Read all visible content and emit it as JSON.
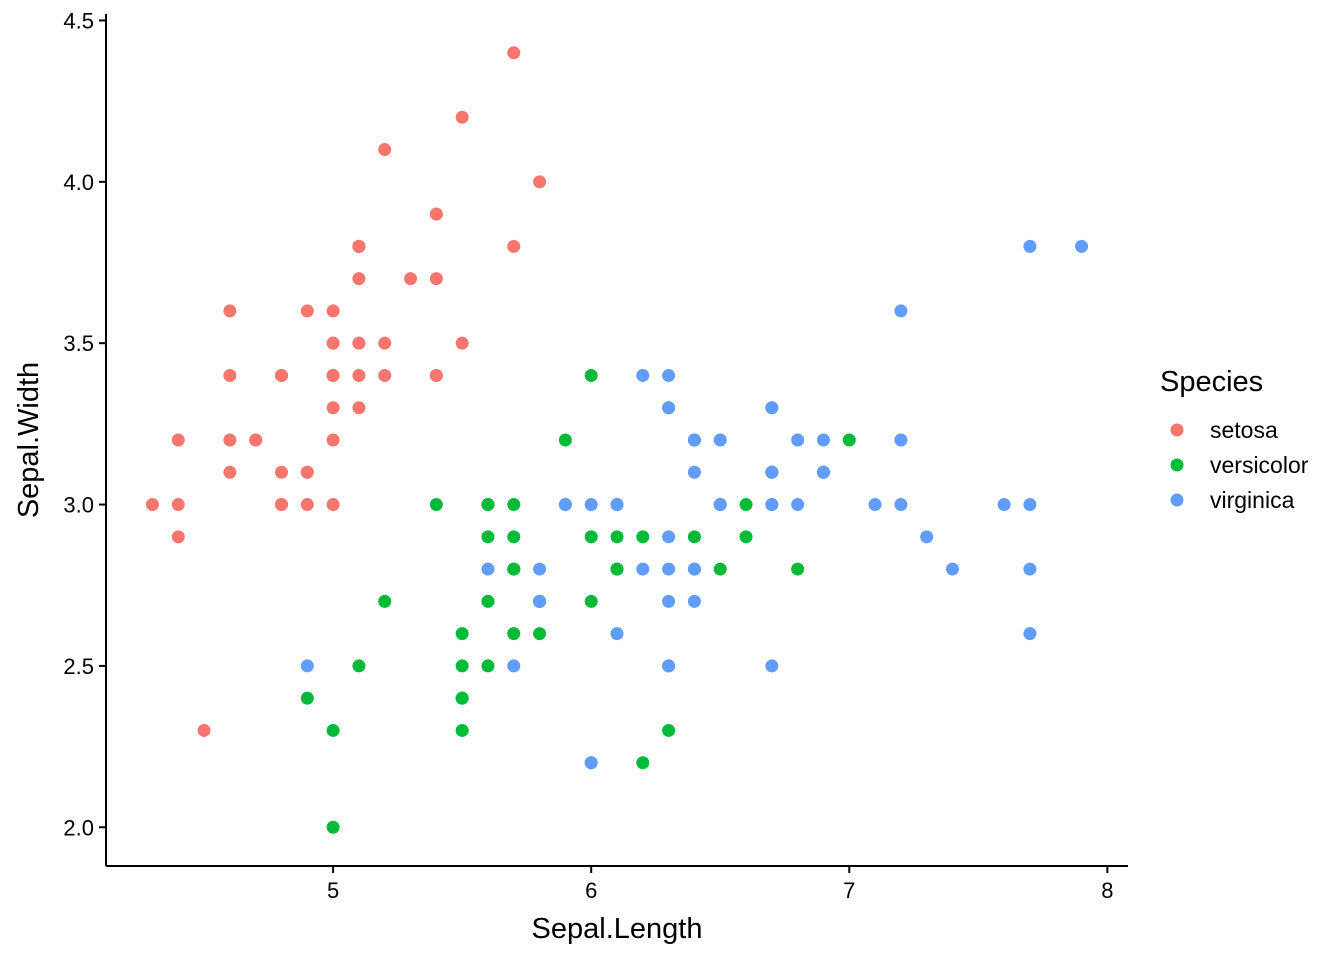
{
  "chart_data": {
    "type": "scatter",
    "xlabel": "Sepal.Length",
    "ylabel": "Sepal.Width",
    "xlim": [
      4.12,
      8.08
    ],
    "ylim": [
      1.88,
      4.52
    ],
    "x_ticks": [
      {
        "value": 5,
        "label": "5"
      },
      {
        "value": 6,
        "label": "6"
      },
      {
        "value": 7,
        "label": "7"
      },
      {
        "value": 8,
        "label": "8"
      }
    ],
    "y_ticks": [
      {
        "value": 2.0,
        "label": "2.0"
      },
      {
        "value": 2.5,
        "label": "2.5"
      },
      {
        "value": 3.0,
        "label": "3.0"
      },
      {
        "value": 3.5,
        "label": "3.5"
      },
      {
        "value": 4.0,
        "label": "4.0"
      },
      {
        "value": 4.5,
        "label": "4.5"
      }
    ],
    "grid": false,
    "legend": {
      "title": "Species",
      "position": "right"
    },
    "series": [
      {
        "name": "setosa",
        "color": "#F8766D",
        "points": [
          [
            5.1,
            3.5
          ],
          [
            4.9,
            3.0
          ],
          [
            4.7,
            3.2
          ],
          [
            4.6,
            3.1
          ],
          [
            5.0,
            3.6
          ],
          [
            5.4,
            3.9
          ],
          [
            4.6,
            3.4
          ],
          [
            5.0,
            3.4
          ],
          [
            4.4,
            2.9
          ],
          [
            4.9,
            3.1
          ],
          [
            5.4,
            3.7
          ],
          [
            4.8,
            3.4
          ],
          [
            4.8,
            3.0
          ],
          [
            4.3,
            3.0
          ],
          [
            5.8,
            4.0
          ],
          [
            5.7,
            4.4
          ],
          [
            5.4,
            3.9
          ],
          [
            5.1,
            3.5
          ],
          [
            5.7,
            3.8
          ],
          [
            5.1,
            3.8
          ],
          [
            5.4,
            3.4
          ],
          [
            5.1,
            3.7
          ],
          [
            4.6,
            3.6
          ],
          [
            5.1,
            3.3
          ],
          [
            4.8,
            3.4
          ],
          [
            5.0,
            3.0
          ],
          [
            5.0,
            3.4
          ],
          [
            5.2,
            3.5
          ],
          [
            5.2,
            3.4
          ],
          [
            4.7,
            3.2
          ],
          [
            4.8,
            3.1
          ],
          [
            5.4,
            3.4
          ],
          [
            5.2,
            4.1
          ],
          [
            5.5,
            4.2
          ],
          [
            4.9,
            3.1
          ],
          [
            5.0,
            3.2
          ],
          [
            5.5,
            3.5
          ],
          [
            4.9,
            3.6
          ],
          [
            4.4,
            3.0
          ],
          [
            5.1,
            3.4
          ],
          [
            5.0,
            3.5
          ],
          [
            4.5,
            2.3
          ],
          [
            4.4,
            3.2
          ],
          [
            5.0,
            3.5
          ],
          [
            5.1,
            3.8
          ],
          [
            4.8,
            3.0
          ],
          [
            5.1,
            3.8
          ],
          [
            4.6,
            3.2
          ],
          [
            5.3,
            3.7
          ],
          [
            5.0,
            3.3
          ]
        ]
      },
      {
        "name": "versicolor",
        "color": "#00BA38",
        "points": [
          [
            7.0,
            3.2
          ],
          [
            6.4,
            3.2
          ],
          [
            6.9,
            3.1
          ],
          [
            5.5,
            2.3
          ],
          [
            6.5,
            2.8
          ],
          [
            5.7,
            2.8
          ],
          [
            6.3,
            3.3
          ],
          [
            4.9,
            2.4
          ],
          [
            6.6,
            2.9
          ],
          [
            5.2,
            2.7
          ],
          [
            5.0,
            2.0
          ],
          [
            5.9,
            3.0
          ],
          [
            6.0,
            2.2
          ],
          [
            6.1,
            2.9
          ],
          [
            5.6,
            2.9
          ],
          [
            6.7,
            3.1
          ],
          [
            5.6,
            3.0
          ],
          [
            5.8,
            2.7
          ],
          [
            6.2,
            2.2
          ],
          [
            5.6,
            2.5
          ],
          [
            5.9,
            3.2
          ],
          [
            6.1,
            2.8
          ],
          [
            6.3,
            2.5
          ],
          [
            6.1,
            2.8
          ],
          [
            6.4,
            2.9
          ],
          [
            6.6,
            3.0
          ],
          [
            6.8,
            2.8
          ],
          [
            6.7,
            3.0
          ],
          [
            6.0,
            2.9
          ],
          [
            5.7,
            2.6
          ],
          [
            5.5,
            2.4
          ],
          [
            5.5,
            2.4
          ],
          [
            5.8,
            2.7
          ],
          [
            6.0,
            2.7
          ],
          [
            5.4,
            3.0
          ],
          [
            6.0,
            3.4
          ],
          [
            6.7,
            3.1
          ],
          [
            6.3,
            2.3
          ],
          [
            5.6,
            3.0
          ],
          [
            5.5,
            2.5
          ],
          [
            5.5,
            2.6
          ],
          [
            6.1,
            3.0
          ],
          [
            5.8,
            2.6
          ],
          [
            5.0,
            2.3
          ],
          [
            5.6,
            2.7
          ],
          [
            5.7,
            3.0
          ],
          [
            5.7,
            2.9
          ],
          [
            6.2,
            2.9
          ],
          [
            5.1,
            2.5
          ],
          [
            5.7,
            2.8
          ]
        ]
      },
      {
        "name": "virginica",
        "color": "#619CFF",
        "points": [
          [
            6.3,
            3.3
          ],
          [
            5.8,
            2.7
          ],
          [
            7.1,
            3.0
          ],
          [
            6.3,
            2.9
          ],
          [
            6.5,
            3.0
          ],
          [
            7.6,
            3.0
          ],
          [
            4.9,
            2.5
          ],
          [
            7.3,
            2.9
          ],
          [
            6.7,
            2.5
          ],
          [
            7.2,
            3.6
          ],
          [
            6.5,
            3.2
          ],
          [
            6.4,
            2.7
          ],
          [
            6.8,
            3.0
          ],
          [
            5.7,
            2.5
          ],
          [
            5.8,
            2.8
          ],
          [
            6.4,
            3.2
          ],
          [
            6.5,
            3.0
          ],
          [
            7.7,
            3.8
          ],
          [
            7.7,
            2.6
          ],
          [
            6.0,
            2.2
          ],
          [
            6.9,
            3.2
          ],
          [
            5.6,
            2.8
          ],
          [
            7.7,
            2.8
          ],
          [
            6.3,
            2.7
          ],
          [
            6.7,
            3.3
          ],
          [
            7.2,
            3.2
          ],
          [
            6.2,
            2.8
          ],
          [
            6.1,
            3.0
          ],
          [
            6.4,
            2.8
          ],
          [
            7.2,
            3.0
          ],
          [
            7.4,
            2.8
          ],
          [
            7.9,
            3.8
          ],
          [
            6.4,
            2.8
          ],
          [
            6.3,
            2.8
          ],
          [
            6.1,
            2.6
          ],
          [
            7.7,
            3.0
          ],
          [
            6.3,
            3.4
          ],
          [
            6.4,
            3.1
          ],
          [
            6.0,
            3.0
          ],
          [
            6.9,
            3.1
          ],
          [
            6.7,
            3.1
          ],
          [
            6.9,
            3.1
          ],
          [
            5.8,
            2.7
          ],
          [
            6.8,
            3.2
          ],
          [
            6.7,
            3.3
          ],
          [
            6.7,
            3.0
          ],
          [
            6.3,
            2.5
          ],
          [
            6.5,
            3.0
          ],
          [
            6.2,
            3.4
          ],
          [
            5.9,
            3.0
          ]
        ]
      }
    ]
  }
}
